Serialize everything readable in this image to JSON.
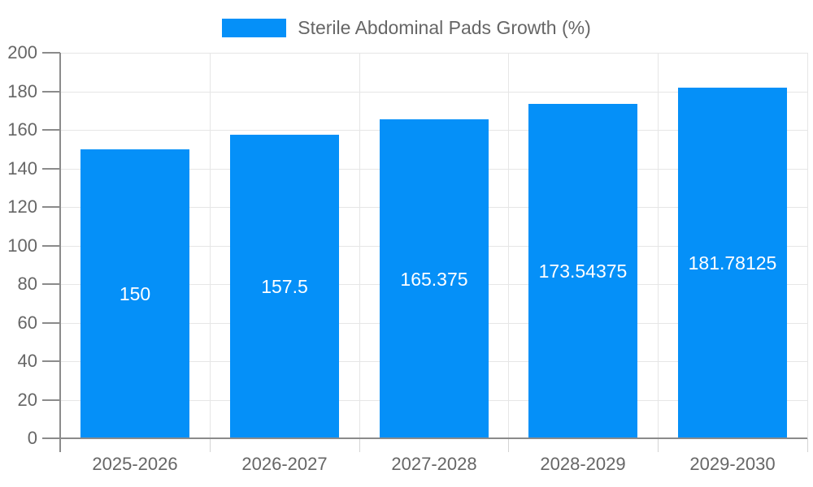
{
  "legend": {
    "label": "Sterile Abdominal Pads Growth (%)",
    "swatch_color": "#0590f8"
  },
  "chart_data": {
    "type": "bar",
    "title": "",
    "series_name": "Sterile Abdominal Pads Growth (%)",
    "categories": [
      "2025-2026",
      "2026-2027",
      "2027-2028",
      "2028-2029",
      "2029-2030"
    ],
    "values": [
      150,
      157.5,
      165.375,
      173.54375,
      181.78125
    ],
    "value_labels": [
      "150",
      "157.5",
      "165.375",
      "173.54375",
      "181.78125"
    ],
    "ylim": [
      0,
      200
    ],
    "yticks": [
      0,
      20,
      40,
      60,
      80,
      100,
      120,
      140,
      160,
      180,
      200
    ],
    "grid": true,
    "legend_position": "top",
    "bar_color": "#0590f8",
    "bar_label_color": "#ffffff",
    "axis_color": "#8b8b8b",
    "grid_color": "#e6e6e6",
    "x_tick_mark_color": "#d4d4d4",
    "tick_label_color": "#666666",
    "background_color": "#ffffff"
  }
}
